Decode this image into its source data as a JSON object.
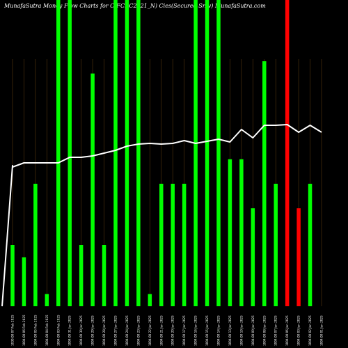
{
  "chart_data": {
    "type": "bar",
    "title": "MunafaSutra  Money Flow  Charts for CIFCI(C2021_N) Cies(Secured Sr.iv) MunafaSutra.com",
    "categories": [
      "Fri 07 Feb 2025",
      "Thu 06 Feb 2025",
      "Wed 05 Feb 2025",
      "Tue 04 Feb 2025",
      "Mon 03 Feb 2025",
      "Fri 31 Jan 2025",
      "Thu 30 Jan 2025",
      "Wed 29 Jan 2025",
      "Tue 28 Jan 2025",
      "Mon 27 Jan 2025",
      "Fri 24 Jan 2025",
      "Thu 23 Jan 2025",
      "Wed 22 Jan 2025",
      "Tue 21 Jan 2025",
      "Mon 20 Jan 2025",
      "Fri 17 Jan 2025",
      "Thu 16 Jan 2025",
      "Wed 15 Jan 2025",
      "Tue 14 Jan 2025",
      "Mon 13 Jan 2025",
      "Fri 10 Jan 2025",
      "Thu 09 Jan 2025",
      "Wed 08 Jan 2025",
      "Tue 07 Jan 2025",
      "Mon 06 Jan 2025",
      "Fri 03 Jan 2025",
      "Thu 02 Jan 2025",
      "Wed 01 Jan 2025"
    ],
    "tick_labels": [
      "1030.00 07 Feb 2025",
      "1004.00 06 Feb 2025",
      "1004.00 05 Feb 2025",
      "1004.00 04 Feb 2025",
      "1004.00 03 Feb 2025",
      "1004.00 31 Jan 2025",
      "1004.00 30 Jan 2025",
      "1004.00 29 Jan 2025",
      "1004.00 28 Jan 2025",
      "1004.00 27 Jan 2025",
      "1004.00 24 Jan 2025",
      "1004.00 23 Jan 2025",
      "1004.00 22 Jan 2025",
      "1004.00 21 Jan 2025",
      "1004.00 20 Jan 2025",
      "1004.00 17 Jan 2025",
      "1004.00 16 Jan 2025",
      "1004.00 15 Jan 2025",
      "1004.00 14 Jan 2025",
      "1004.00 13 Jan 2025",
      "1004.00 10 Jan 2025",
      "1004.00 09 Jan 2025",
      "1004.00 08 Jan 2025",
      "1004.00 07 Jan 2025",
      "1004.00 06 Jan 2025",
      "1004.00 03 Jan 2025",
      "1004.00 02 Jan 2025",
      "1004.00 01 Jan 2025"
    ],
    "series": [
      {
        "values": [
          1,
          0.8,
          2,
          0.2,
          5,
          5,
          1,
          3.8,
          1,
          5,
          5,
          5,
          0.2,
          2,
          2,
          2,
          5,
          5,
          5,
          2.4,
          2.4,
          1.6,
          4,
          2,
          5,
          1.6,
          2,
          0
        ],
        "colors": [
          "#00ff00",
          "#00ff00",
          "#00ff00",
          "#00ff00",
          "#00ff00",
          "#00ff00",
          "#00ff00",
          "#00ff00",
          "#00ff00",
          "#00ff00",
          "#00ff00",
          "#00ff00",
          "#00ff00",
          "#00ff00",
          "#00ff00",
          "#00ff00",
          "#00ff00",
          "#00ff00",
          "#00ff00",
          "#00ff00",
          "#00ff00",
          "#00ff00",
          "#00ff00",
          "#00ff00",
          "#ff0000",
          "#ff0000",
          "#00ff00",
          "#00ff00"
        ]
      }
    ],
    "price_line": [
      1004,
      1004,
      1004,
      1004,
      1004,
      1004,
      1004,
      1004,
      1004,
      1004,
      1004,
      1004,
      1004,
      1004,
      1004,
      1004,
      1004,
      1004,
      1004,
      1004,
      1004,
      1004,
      1004,
      1004,
      1004,
      1004,
      1004,
      1030
    ],
    "ylim": [
      0,
      5
    ],
    "bar_color_up": "#00ff00",
    "bar_color_down": "#ff0000",
    "line_color": "#ffffff",
    "gridline_color": "#5a3a10",
    "background": "#000000",
    "grid": true
  }
}
